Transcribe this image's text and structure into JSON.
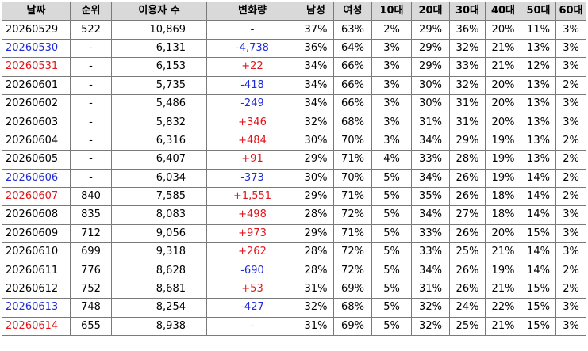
{
  "table": {
    "headers": [
      "날짜",
      "순위",
      "이용자 수",
      "변화량",
      "남성",
      "여성",
      "10대",
      "20대",
      "30대",
      "40대",
      "50대",
      "60대"
    ],
    "rows": [
      {
        "date": "20260529",
        "date_color": "black",
        "rank": "522",
        "users": "10,869",
        "change": "-",
        "change_sign": "none",
        "male": "37%",
        "female": "63%",
        "age10": "2%",
        "age20": "29%",
        "age30": "36%",
        "age40": "20%",
        "age50": "11%",
        "age60": "3%"
      },
      {
        "date": "20260530",
        "date_color": "blue",
        "rank": "-",
        "users": "6,131",
        "change": "-4,738",
        "change_sign": "neg",
        "male": "36%",
        "female": "64%",
        "age10": "3%",
        "age20": "29%",
        "age30": "32%",
        "age40": "21%",
        "age50": "13%",
        "age60": "3%"
      },
      {
        "date": "20260531",
        "date_color": "red",
        "rank": "-",
        "users": "6,153",
        "change": "+22",
        "change_sign": "pos",
        "male": "34%",
        "female": "66%",
        "age10": "3%",
        "age20": "29%",
        "age30": "33%",
        "age40": "21%",
        "age50": "12%",
        "age60": "3%"
      },
      {
        "date": "20260601",
        "date_color": "black",
        "rank": "-",
        "users": "5,735",
        "change": "-418",
        "change_sign": "neg",
        "male": "34%",
        "female": "66%",
        "age10": "3%",
        "age20": "30%",
        "age30": "32%",
        "age40": "20%",
        "age50": "13%",
        "age60": "2%"
      },
      {
        "date": "20260602",
        "date_color": "black",
        "rank": "-",
        "users": "5,486",
        "change": "-249",
        "change_sign": "neg",
        "male": "34%",
        "female": "66%",
        "age10": "3%",
        "age20": "30%",
        "age30": "31%",
        "age40": "20%",
        "age50": "13%",
        "age60": "3%"
      },
      {
        "date": "20260603",
        "date_color": "black",
        "rank": "-",
        "users": "5,832",
        "change": "+346",
        "change_sign": "pos",
        "male": "32%",
        "female": "68%",
        "age10": "3%",
        "age20": "31%",
        "age30": "31%",
        "age40": "20%",
        "age50": "13%",
        "age60": "3%"
      },
      {
        "date": "20260604",
        "date_color": "black",
        "rank": "-",
        "users": "6,316",
        "change": "+484",
        "change_sign": "pos",
        "male": "30%",
        "female": "70%",
        "age10": "3%",
        "age20": "34%",
        "age30": "29%",
        "age40": "19%",
        "age50": "13%",
        "age60": "2%"
      },
      {
        "date": "20260605",
        "date_color": "black",
        "rank": "-",
        "users": "6,407",
        "change": "+91",
        "change_sign": "pos",
        "male": "29%",
        "female": "71%",
        "age10": "4%",
        "age20": "33%",
        "age30": "28%",
        "age40": "19%",
        "age50": "13%",
        "age60": "2%"
      },
      {
        "date": "20260606",
        "date_color": "blue",
        "rank": "-",
        "users": "6,034",
        "change": "-373",
        "change_sign": "neg",
        "male": "30%",
        "female": "70%",
        "age10": "5%",
        "age20": "34%",
        "age30": "26%",
        "age40": "19%",
        "age50": "14%",
        "age60": "2%"
      },
      {
        "date": "20260607",
        "date_color": "red",
        "rank": "840",
        "users": "7,585",
        "change": "+1,551",
        "change_sign": "pos",
        "male": "29%",
        "female": "71%",
        "age10": "5%",
        "age20": "35%",
        "age30": "26%",
        "age40": "18%",
        "age50": "14%",
        "age60": "2%"
      },
      {
        "date": "20260608",
        "date_color": "black",
        "rank": "835",
        "users": "8,083",
        "change": "+498",
        "change_sign": "pos",
        "male": "28%",
        "female": "72%",
        "age10": "5%",
        "age20": "34%",
        "age30": "27%",
        "age40": "18%",
        "age50": "14%",
        "age60": "3%"
      },
      {
        "date": "20260609",
        "date_color": "black",
        "rank": "712",
        "users": "9,056",
        "change": "+973",
        "change_sign": "pos",
        "male": "29%",
        "female": "71%",
        "age10": "5%",
        "age20": "33%",
        "age30": "26%",
        "age40": "20%",
        "age50": "15%",
        "age60": "3%"
      },
      {
        "date": "20260610",
        "date_color": "black",
        "rank": "699",
        "users": "9,318",
        "change": "+262",
        "change_sign": "pos",
        "male": "28%",
        "female": "72%",
        "age10": "5%",
        "age20": "33%",
        "age30": "25%",
        "age40": "21%",
        "age50": "14%",
        "age60": "3%"
      },
      {
        "date": "20260611",
        "date_color": "black",
        "rank": "776",
        "users": "8,628",
        "change": "-690",
        "change_sign": "neg",
        "male": "28%",
        "female": "72%",
        "age10": "5%",
        "age20": "34%",
        "age30": "26%",
        "age40": "19%",
        "age50": "14%",
        "age60": "2%"
      },
      {
        "date": "20260612",
        "date_color": "black",
        "rank": "752",
        "users": "8,681",
        "change": "+53",
        "change_sign": "pos",
        "male": "31%",
        "female": "69%",
        "age10": "5%",
        "age20": "31%",
        "age30": "26%",
        "age40": "21%",
        "age50": "15%",
        "age60": "2%"
      },
      {
        "date": "20260613",
        "date_color": "blue",
        "rank": "748",
        "users": "8,254",
        "change": "-427",
        "change_sign": "neg",
        "male": "32%",
        "female": "68%",
        "age10": "5%",
        "age20": "32%",
        "age30": "24%",
        "age40": "22%",
        "age50": "15%",
        "age60": "3%"
      },
      {
        "date": "20260614",
        "date_color": "red",
        "rank": "655",
        "users": "8,938",
        "change": "-",
        "change_sign": "none",
        "male": "31%",
        "female": "69%",
        "age10": "5%",
        "age20": "32%",
        "age30": "25%",
        "age40": "21%",
        "age50": "15%",
        "age60": "3%"
      }
    ]
  }
}
